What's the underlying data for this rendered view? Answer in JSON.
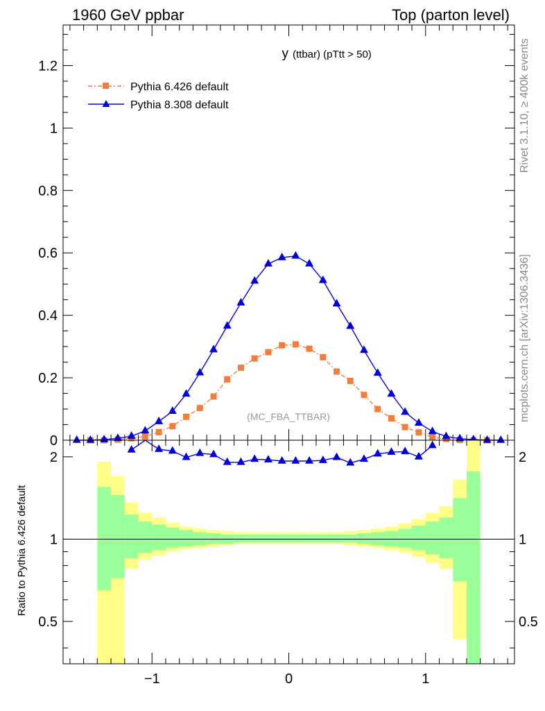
{
  "header": {
    "left": "1960 GeV ppbar",
    "right": "Top (parton level)"
  },
  "side_labels": {
    "rivet": "Rivet 3.1.10, ≥ 400k events",
    "mcplots": "mcplots.cern.ch [arXiv:1306.3436]"
  },
  "chart_data": [
    {
      "type": "line",
      "title": "y (ttbar) (pTtt > 50)",
      "title_main": "y",
      "title_sub": "(ttbar)  (pTtt > 50)",
      "watermark": "(MC_FBA_TTBAR)",
      "xlim": [
        -1.65,
        1.65
      ],
      "ylim": [
        0,
        1.33
      ],
      "y_ticks": [
        0,
        0.2,
        0.4,
        0.6,
        0.8,
        1,
        1.2
      ],
      "y_tick_labels": [
        "0",
        "0.2",
        "0.4",
        "0.6",
        "0.8",
        "1",
        "1.2"
      ],
      "series": [
        {
          "name": "Pythia 6.426 default",
          "color": "#f47c3c",
          "marker": "square",
          "line": "dash-dot",
          "x": [
            -1.45,
            -1.35,
            -1.25,
            -1.15,
            -1.05,
            -0.95,
            -0.85,
            -0.75,
            -0.65,
            -0.55,
            -0.45,
            -0.35,
            -0.25,
            -0.15,
            -0.05,
            0.05,
            0.15,
            0.25,
            0.35,
            0.45,
            0.55,
            0.65,
            0.75,
            0.85,
            0.95,
            1.05,
            1.15,
            1.25,
            1.35,
            1.45
          ],
          "values": [
            0.0,
            0.0,
            0.002,
            0.006,
            0.012,
            0.026,
            0.045,
            0.075,
            0.103,
            0.14,
            0.195,
            0.232,
            0.262,
            0.282,
            0.304,
            0.307,
            0.293,
            0.266,
            0.22,
            0.19,
            0.145,
            0.1,
            0.07,
            0.042,
            0.025,
            0.01,
            0.004,
            0.001,
            0.0,
            0.0
          ]
        },
        {
          "name": "Pythia 8.308 default",
          "color": "#0000dd",
          "marker": "triangle",
          "line": "solid",
          "x": [
            -1.55,
            -1.45,
            -1.35,
            -1.25,
            -1.15,
            -1.05,
            -0.95,
            -0.85,
            -0.75,
            -0.65,
            -0.55,
            -0.45,
            -0.35,
            -0.25,
            -0.15,
            -0.05,
            0.05,
            0.15,
            0.25,
            0.35,
            0.45,
            0.55,
            0.65,
            0.75,
            0.85,
            0.95,
            1.05,
            1.15,
            1.25,
            1.35,
            1.45,
            1.55
          ],
          "values": [
            0.0,
            0.0,
            0.002,
            0.006,
            0.013,
            0.03,
            0.06,
            0.093,
            0.148,
            0.216,
            0.29,
            0.366,
            0.44,
            0.51,
            0.565,
            0.585,
            0.59,
            0.565,
            0.512,
            0.437,
            0.365,
            0.288,
            0.215,
            0.148,
            0.09,
            0.055,
            0.028,
            0.012,
            0.005,
            0.002,
            0.0,
            0.0
          ]
        }
      ]
    },
    {
      "type": "line",
      "ylabel": "Ratio to Pythia 6.426 default",
      "xlim": [
        -1.65,
        1.65
      ],
      "ylim": [
        0.35,
        2.3
      ],
      "y_ticks": [
        0.5,
        1,
        2
      ],
      "y_tick_labels": [
        "0.5",
        "1",
        "2"
      ],
      "x_ticks": [
        -1,
        0,
        1
      ],
      "x_tick_labels": [
        "−1",
        "0",
        "1"
      ],
      "reference": 1,
      "uncertainty_bands": {
        "yellow_color": "#ffff88",
        "green_color": "#99ff99",
        "x_edges": [
          -1.4,
          -1.3,
          -1.2,
          -1.1,
          -1.0,
          -0.9,
          -0.8,
          -0.7,
          -0.6,
          -0.5,
          -0.4,
          -0.3,
          -0.2,
          -0.1,
          0.0,
          0.1,
          0.2,
          0.3,
          0.4,
          0.5,
          0.6,
          0.7,
          0.8,
          0.9,
          1.0,
          1.1,
          1.2,
          1.3,
          1.4
        ],
        "yellow_hi": [
          1.92,
          1.7,
          1.36,
          1.25,
          1.2,
          1.15,
          1.11,
          1.09,
          1.08,
          1.07,
          1.06,
          1.06,
          1.06,
          1.06,
          1.06,
          1.06,
          1.06,
          1.06,
          1.07,
          1.08,
          1.09,
          1.11,
          1.14,
          1.18,
          1.25,
          1.32,
          1.65,
          2.3
        ],
        "yellow_lo": [
          0.35,
          0.35,
          0.78,
          0.84,
          0.87,
          0.9,
          0.92,
          0.93,
          0.94,
          0.95,
          0.96,
          0.96,
          0.96,
          0.96,
          0.96,
          0.96,
          0.96,
          0.96,
          0.95,
          0.94,
          0.93,
          0.91,
          0.89,
          0.86,
          0.82,
          0.78,
          0.43,
          0.35
        ],
        "green_hi": [
          1.55,
          1.45,
          1.23,
          1.16,
          1.13,
          1.1,
          1.08,
          1.06,
          1.05,
          1.04,
          1.04,
          1.04,
          1.04,
          1.04,
          1.04,
          1.04,
          1.04,
          1.04,
          1.04,
          1.05,
          1.06,
          1.07,
          1.09,
          1.12,
          1.16,
          1.2,
          1.41,
          1.77
        ],
        "green_lo": [
          0.65,
          0.72,
          0.85,
          0.89,
          0.91,
          0.93,
          0.94,
          0.95,
          0.96,
          0.96,
          0.97,
          0.97,
          0.97,
          0.97,
          0.97,
          0.97,
          0.97,
          0.97,
          0.97,
          0.96,
          0.95,
          0.94,
          0.93,
          0.91,
          0.88,
          0.85,
          0.7,
          0.35
        ]
      },
      "series": [
        {
          "name": "Pythia 8.308 default / Pythia 6.426 default",
          "color": "#0000dd",
          "marker": "triangle",
          "x": [
            -1.15,
            -1.05,
            -0.95,
            -0.85,
            -0.75,
            -0.65,
            -0.55,
            -0.45,
            -0.35,
            -0.25,
            -0.15,
            -0.05,
            0.05,
            0.15,
            0.25,
            0.35,
            0.45,
            0.55,
            0.65,
            0.75,
            0.85,
            0.95,
            1.05
          ],
          "values": [
            2.12,
            2.45,
            2.13,
            2.1,
            1.99,
            2.06,
            2.04,
            1.91,
            1.91,
            1.96,
            1.95,
            1.93,
            1.93,
            1.93,
            1.94,
            1.99,
            1.9,
            1.96,
            2.05,
            2.08,
            2.09,
            2.0,
            2.2
          ]
        }
      ]
    }
  ]
}
